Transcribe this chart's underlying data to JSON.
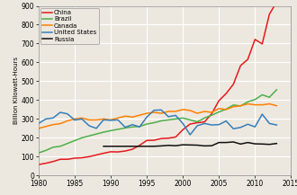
{
  "years": [
    1980,
    1981,
    1982,
    1983,
    1984,
    1985,
    1986,
    1987,
    1988,
    1989,
    1990,
    1991,
    1992,
    1993,
    1994,
    1995,
    1996,
    1997,
    1998,
    1999,
    2000,
    2001,
    2002,
    2003,
    2004,
    2005,
    2006,
    2007,
    2008,
    2009,
    2010,
    2011,
    2012,
    2013
  ],
  "china": [
    58,
    65,
    74,
    86,
    86,
    92,
    94,
    100,
    109,
    118,
    126,
    125,
    130,
    139,
    160,
    186,
    187,
    196,
    198,
    204,
    243,
    273,
    280,
    284,
    328,
    397,
    435,
    484,
    583,
    616,
    722,
    698,
    856,
    920
  ],
  "brazil": [
    120,
    133,
    150,
    155,
    170,
    185,
    200,
    210,
    220,
    230,
    238,
    245,
    252,
    258,
    260,
    273,
    280,
    290,
    295,
    300,
    305,
    295,
    285,
    305,
    320,
    337,
    352,
    374,
    369,
    391,
    403,
    428,
    415,
    455
  ],
  "canada": [
    250,
    260,
    270,
    275,
    290,
    300,
    305,
    295,
    295,
    300,
    295,
    305,
    315,
    310,
    320,
    330,
    335,
    330,
    340,
    340,
    350,
    345,
    330,
    340,
    335,
    355,
    350,
    365,
    370,
    380,
    375,
    375,
    380,
    370
  ],
  "us": [
    276,
    300,
    305,
    335,
    327,
    294,
    300,
    264,
    250,
    295,
    293,
    295,
    256,
    270,
    258,
    310,
    346,
    348,
    312,
    319,
    276,
    216,
    264,
    276,
    268,
    270,
    289,
    248,
    255,
    272,
    258,
    325,
    276,
    268
  ],
  "russia": [
    155,
    155,
    155,
    155,
    155,
    155,
    155,
    155,
    157,
    160,
    158,
    163,
    162,
    161,
    157,
    158,
    175,
    175,
    178,
    167,
    175,
    168,
    167,
    165,
    170
  ],
  "russia_years": [
    1989,
    1990,
    1991,
    1992,
    1993,
    1994,
    1995,
    1996,
    1997,
    1998,
    1999,
    2000,
    2001,
    2002,
    2003,
    2004,
    2005,
    2006,
    2007,
    2008,
    2009,
    2010,
    2011,
    2012,
    2013
  ],
  "colors": {
    "china": "#e41a1c",
    "brazil": "#4daf4a",
    "canada": "#ff7f00",
    "us": "#377eb8",
    "russia": "#111111"
  },
  "ylabel": "Billion Kilowatt-Hours",
  "xlim": [
    1980,
    2015
  ],
  "ylim": [
    0,
    900
  ],
  "yticks": [
    0,
    100,
    200,
    300,
    400,
    500,
    600,
    700,
    800,
    900
  ],
  "xticks": [
    1980,
    1985,
    1990,
    1995,
    2000,
    2005,
    2010,
    2015
  ],
  "bg_color": "#ede8df",
  "grid_color": "#ffffff"
}
